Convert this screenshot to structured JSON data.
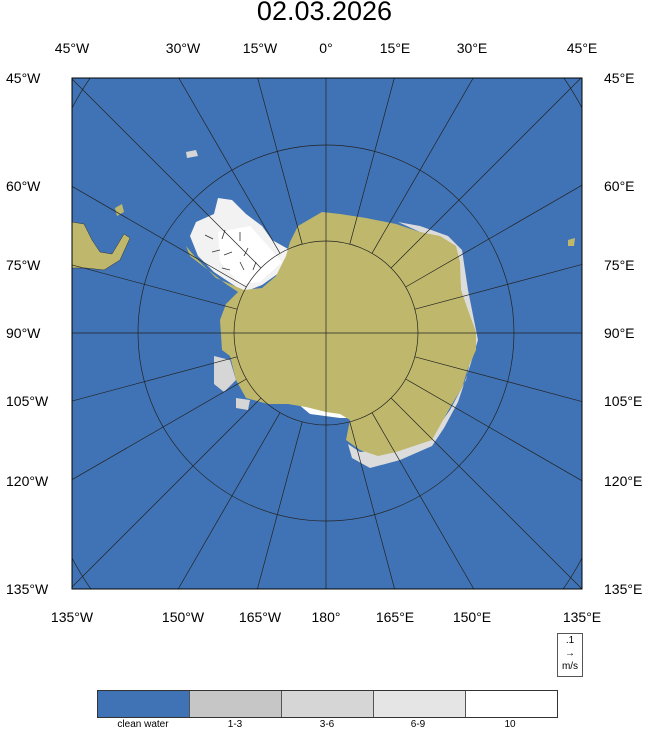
{
  "title": "02.03.2026",
  "colors": {
    "water": "#4073b5",
    "land": "#bfb86c",
    "ice_1_3": "#c6c6c6",
    "ice_3_6": "#d6d6d6",
    "ice_6_9": "#e5e5e5",
    "ice_10": "#ffffff"
  },
  "labels": {
    "top": [
      "45°W",
      "30°W",
      "15°W",
      "0°",
      "15°E",
      "30°E",
      "45°E"
    ],
    "bottom": [
      "135°W",
      "150°W",
      "165°W",
      "180°",
      "165°E",
      "150°E",
      "135°E"
    ],
    "left": [
      "45°W",
      "60°W",
      "75°W",
      "90°W",
      "105°W",
      "120°W",
      "135°W"
    ],
    "right": [
      "45°E",
      "60°E",
      "75°E",
      "90°E",
      "105°E",
      "120°E",
      "135°E"
    ]
  },
  "vector_reference": {
    "value": ".1",
    "arrow": "→",
    "unit": "m/s"
  },
  "legend": [
    {
      "label": "clean water",
      "color": "#4073b5"
    },
    {
      "label": "1-3",
      "color": "#c6c6c6"
    },
    {
      "label": "3-6",
      "color": "#d6d6d6"
    },
    {
      "label": "6-9",
      "color": "#e5e5e5"
    },
    {
      "label": "10",
      "color": "#ffffff"
    }
  ]
}
